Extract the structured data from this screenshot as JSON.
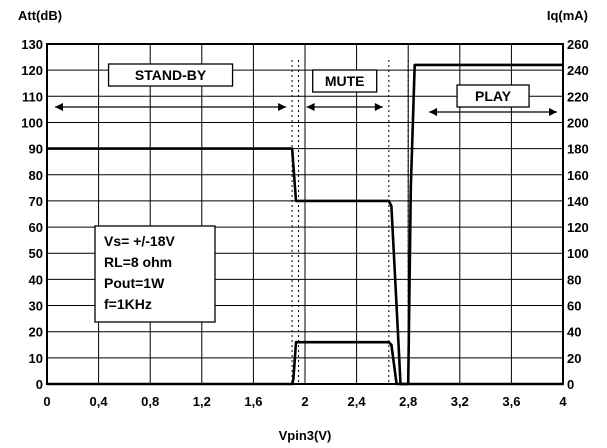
{
  "chart_data": {
    "type": "line",
    "xlabel": "Vpin3(V)",
    "ylabel_left": "Att(dB)",
    "ylabel_right": "Iq(mA)",
    "xlim": [
      0,
      4
    ],
    "ylim_left": [
      0,
      130
    ],
    "ylim_right": [
      0,
      260
    ],
    "x_ticks": [
      "0",
      "0,4",
      "0,8",
      "1,2",
      "1,6",
      "2",
      "2,4",
      "2,8",
      "3,2",
      "3,6",
      "4"
    ],
    "y_left_ticks": [
      "0",
      "10",
      "20",
      "30",
      "40",
      "50",
      "60",
      "70",
      "80",
      "90",
      "100",
      "110",
      "120",
      "130"
    ],
    "y_right_ticks": [
      "0",
      "20",
      "40",
      "60",
      "80",
      "100",
      "120",
      "140",
      "160",
      "180",
      "200",
      "220",
      "240",
      "260"
    ],
    "grid": true,
    "series": [
      {
        "axis": "left",
        "points": [
          [
            0,
            90
          ],
          [
            1.9,
            90
          ],
          [
            1.93,
            70
          ],
          [
            2.65,
            70
          ],
          [
            2.67,
            68
          ],
          [
            2.72,
            20
          ],
          [
            2.74,
            0
          ],
          [
            4,
            0
          ]
        ]
      },
      {
        "axis": "right",
        "points": [
          [
            0,
            0
          ],
          [
            1.9,
            0
          ],
          [
            1.91,
            4
          ],
          [
            1.93,
            32
          ],
          [
            2.65,
            32
          ],
          [
            2.67,
            30
          ],
          [
            2.71,
            0
          ],
          [
            2.8,
            0
          ],
          [
            2.82,
            150
          ],
          [
            2.85,
            244
          ],
          [
            4,
            244
          ]
        ]
      }
    ],
    "regions": [
      {
        "label": "STAND-BY",
        "x_range": [
          0,
          1.9
        ]
      },
      {
        "label": "MUTE",
        "x_range": [
          1.95,
          2.65
        ]
      },
      {
        "label": "PLAY",
        "x_range": [
          2.9,
          4.0
        ]
      }
    ],
    "annotation_lines": [
      "Vs= +/-18V",
      "RL=8 ohm",
      "Pout=1W",
      "f=1KHz"
    ]
  }
}
